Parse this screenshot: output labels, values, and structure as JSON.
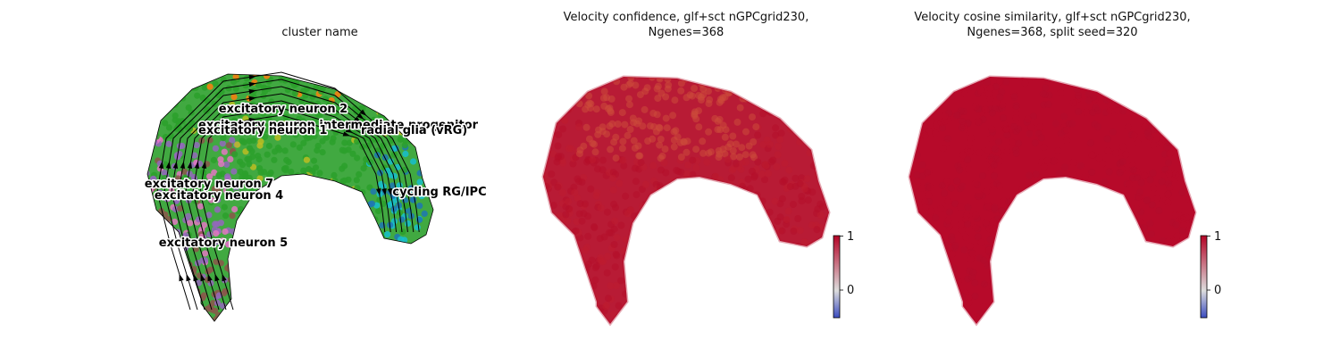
{
  "chart_data": [
    {
      "type": "scatter",
      "title": "cluster name",
      "subtype": "embedding scatter with velocity streamlines",
      "clusters": [
        {
          "name": "excitatory neuron 2",
          "color": "#2ca02c"
        },
        {
          "name": "excitatory neuron 1",
          "color": "#2ca02c"
        },
        {
          "name": "intermediate progenitor",
          "color": "#8c564b"
        },
        {
          "name": "radial glia (vRG)",
          "color": "#17becf"
        },
        {
          "name": "excitatory neuron 7",
          "color": "#e377c2"
        },
        {
          "name": "excitatory neuron 4",
          "color": "#9467bd"
        },
        {
          "name": "cycling RG/IPC",
          "color": "#1f77b4"
        },
        {
          "name": "excitatory neuron 5",
          "color": "#8c564b"
        }
      ],
      "labels_shown": [
        "excitatory neuron 2",
        "excitatory neuron intermediate progenitor",
        "excitatory neuron 1",
        "radial glia (vRG)",
        "excitatory neuron 7",
        "excitatory neuron 4",
        "cycling RG/IPC",
        "excitatory neuron 5"
      ],
      "accent_colors": [
        "#ff7f0e",
        "#bcbd22"
      ],
      "streamlines": true,
      "axes_visible": false,
      "grid": false
    },
    {
      "type": "scatter",
      "title": "Velocity confidence, glf+sct nGPCgrid230, Ngenes=368",
      "title_lines": [
        "Velocity confidence, glf+sct nGPCgrid230,",
        "Ngenes=368"
      ],
      "colormap": "coolwarm",
      "colorbar": {
        "ticks": [
          "0",
          "1"
        ],
        "range": [
          -0.5,
          1.0
        ]
      },
      "dominant_color": "#b40f2a",
      "highlight_color": "#cc4a3a",
      "axes_visible": false,
      "grid": false
    },
    {
      "type": "scatter",
      "title": "Velocity cosine similarity, glf+sct nGPCgrid230, Ngenes=368, split seed=320",
      "title_lines": [
        "Velocity cosine similarity, glf+sct nGPCgrid230,",
        "Ngenes=368, split seed=320"
      ],
      "colormap": "coolwarm",
      "colorbar": {
        "ticks": [
          "0",
          "1"
        ],
        "range": [
          -0.5,
          1.0
        ]
      },
      "dominant_color": "#b70a2a",
      "axes_visible": false,
      "grid": false
    }
  ]
}
